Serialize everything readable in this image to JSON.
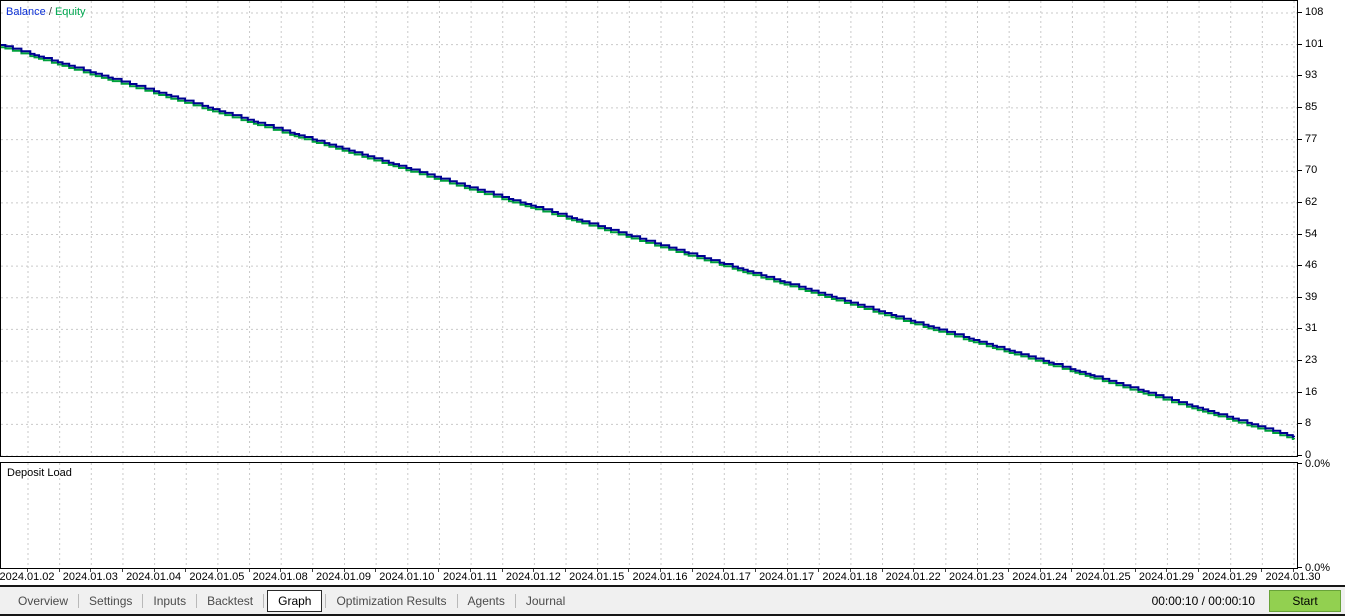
{
  "legend": {
    "separator": "/"
  },
  "colors": {
    "balance_line": "#000091",
    "equity_line": "#00a03c",
    "legend_balance": "#0a2ed6",
    "legend_equity": "#00a850",
    "grid": "#cacaca",
    "start_button_bg": "#92d050",
    "tab_bar_bg": "#f0f0f0"
  },
  "chart_data": [
    {
      "type": "line",
      "title": "Balance / Equity",
      "x_dates": [
        "2024.01.02",
        "2024.01.03",
        "2024.01.04",
        "2024.01.05",
        "2024.01.08",
        "2024.01.09",
        "2024.01.10",
        "2024.01.11",
        "2024.01.12",
        "2024.01.15",
        "2024.01.16",
        "2024.01.17",
        "2024.01.17",
        "2024.01.18",
        "2024.01.22",
        "2024.01.23",
        "2024.01.24",
        "2024.01.25",
        "2024.01.29",
        "2024.01.29",
        "2024.01.30"
      ],
      "series": [
        {
          "name": "Balance",
          "color": "#000091",
          "values": [
            98.2,
            93.5,
            88.9,
            84.2,
            79.5,
            74.8,
            70.1,
            65.4,
            60.8,
            56.1,
            51.4,
            46.8,
            42.1,
            37.4,
            32.7,
            28.0,
            23.4,
            18.7,
            14.0,
            9.3,
            4.6
          ]
        },
        {
          "name": "Equity",
          "color": "#00a03c",
          "values": [
            97.9,
            93.2,
            88.6,
            83.9,
            79.2,
            74.5,
            69.8,
            65.1,
            60.5,
            55.8,
            51.1,
            46.5,
            41.8,
            37.1,
            32.4,
            27.7,
            23.1,
            18.4,
            13.7,
            9.0,
            4.3
          ]
        }
      ],
      "y_axis": {
        "side": "right",
        "min": 0,
        "max": 108,
        "ticks": [
          108,
          101,
          93,
          85,
          77,
          70,
          62,
          54,
          46,
          39,
          31,
          23,
          16,
          8,
          0
        ]
      },
      "grid": true,
      "legend_position": "top-left"
    },
    {
      "type": "line",
      "label": "Deposit Load",
      "y_ticks": [
        "0.0%",
        "0.0%"
      ],
      "values": []
    }
  ],
  "tabs": [
    {
      "label": "Overview",
      "active": false
    },
    {
      "label": "Settings",
      "active": false
    },
    {
      "label": "Inputs",
      "active": false
    },
    {
      "label": "Backtest",
      "active": false
    },
    {
      "label": "Graph",
      "active": true
    },
    {
      "label": "Optimization Results",
      "active": false
    },
    {
      "label": "Agents",
      "active": false
    },
    {
      "label": "Journal",
      "active": false
    }
  ],
  "status_bar": {
    "time_display": "00:00:10 / 00:00:10",
    "start_label": "Start"
  }
}
